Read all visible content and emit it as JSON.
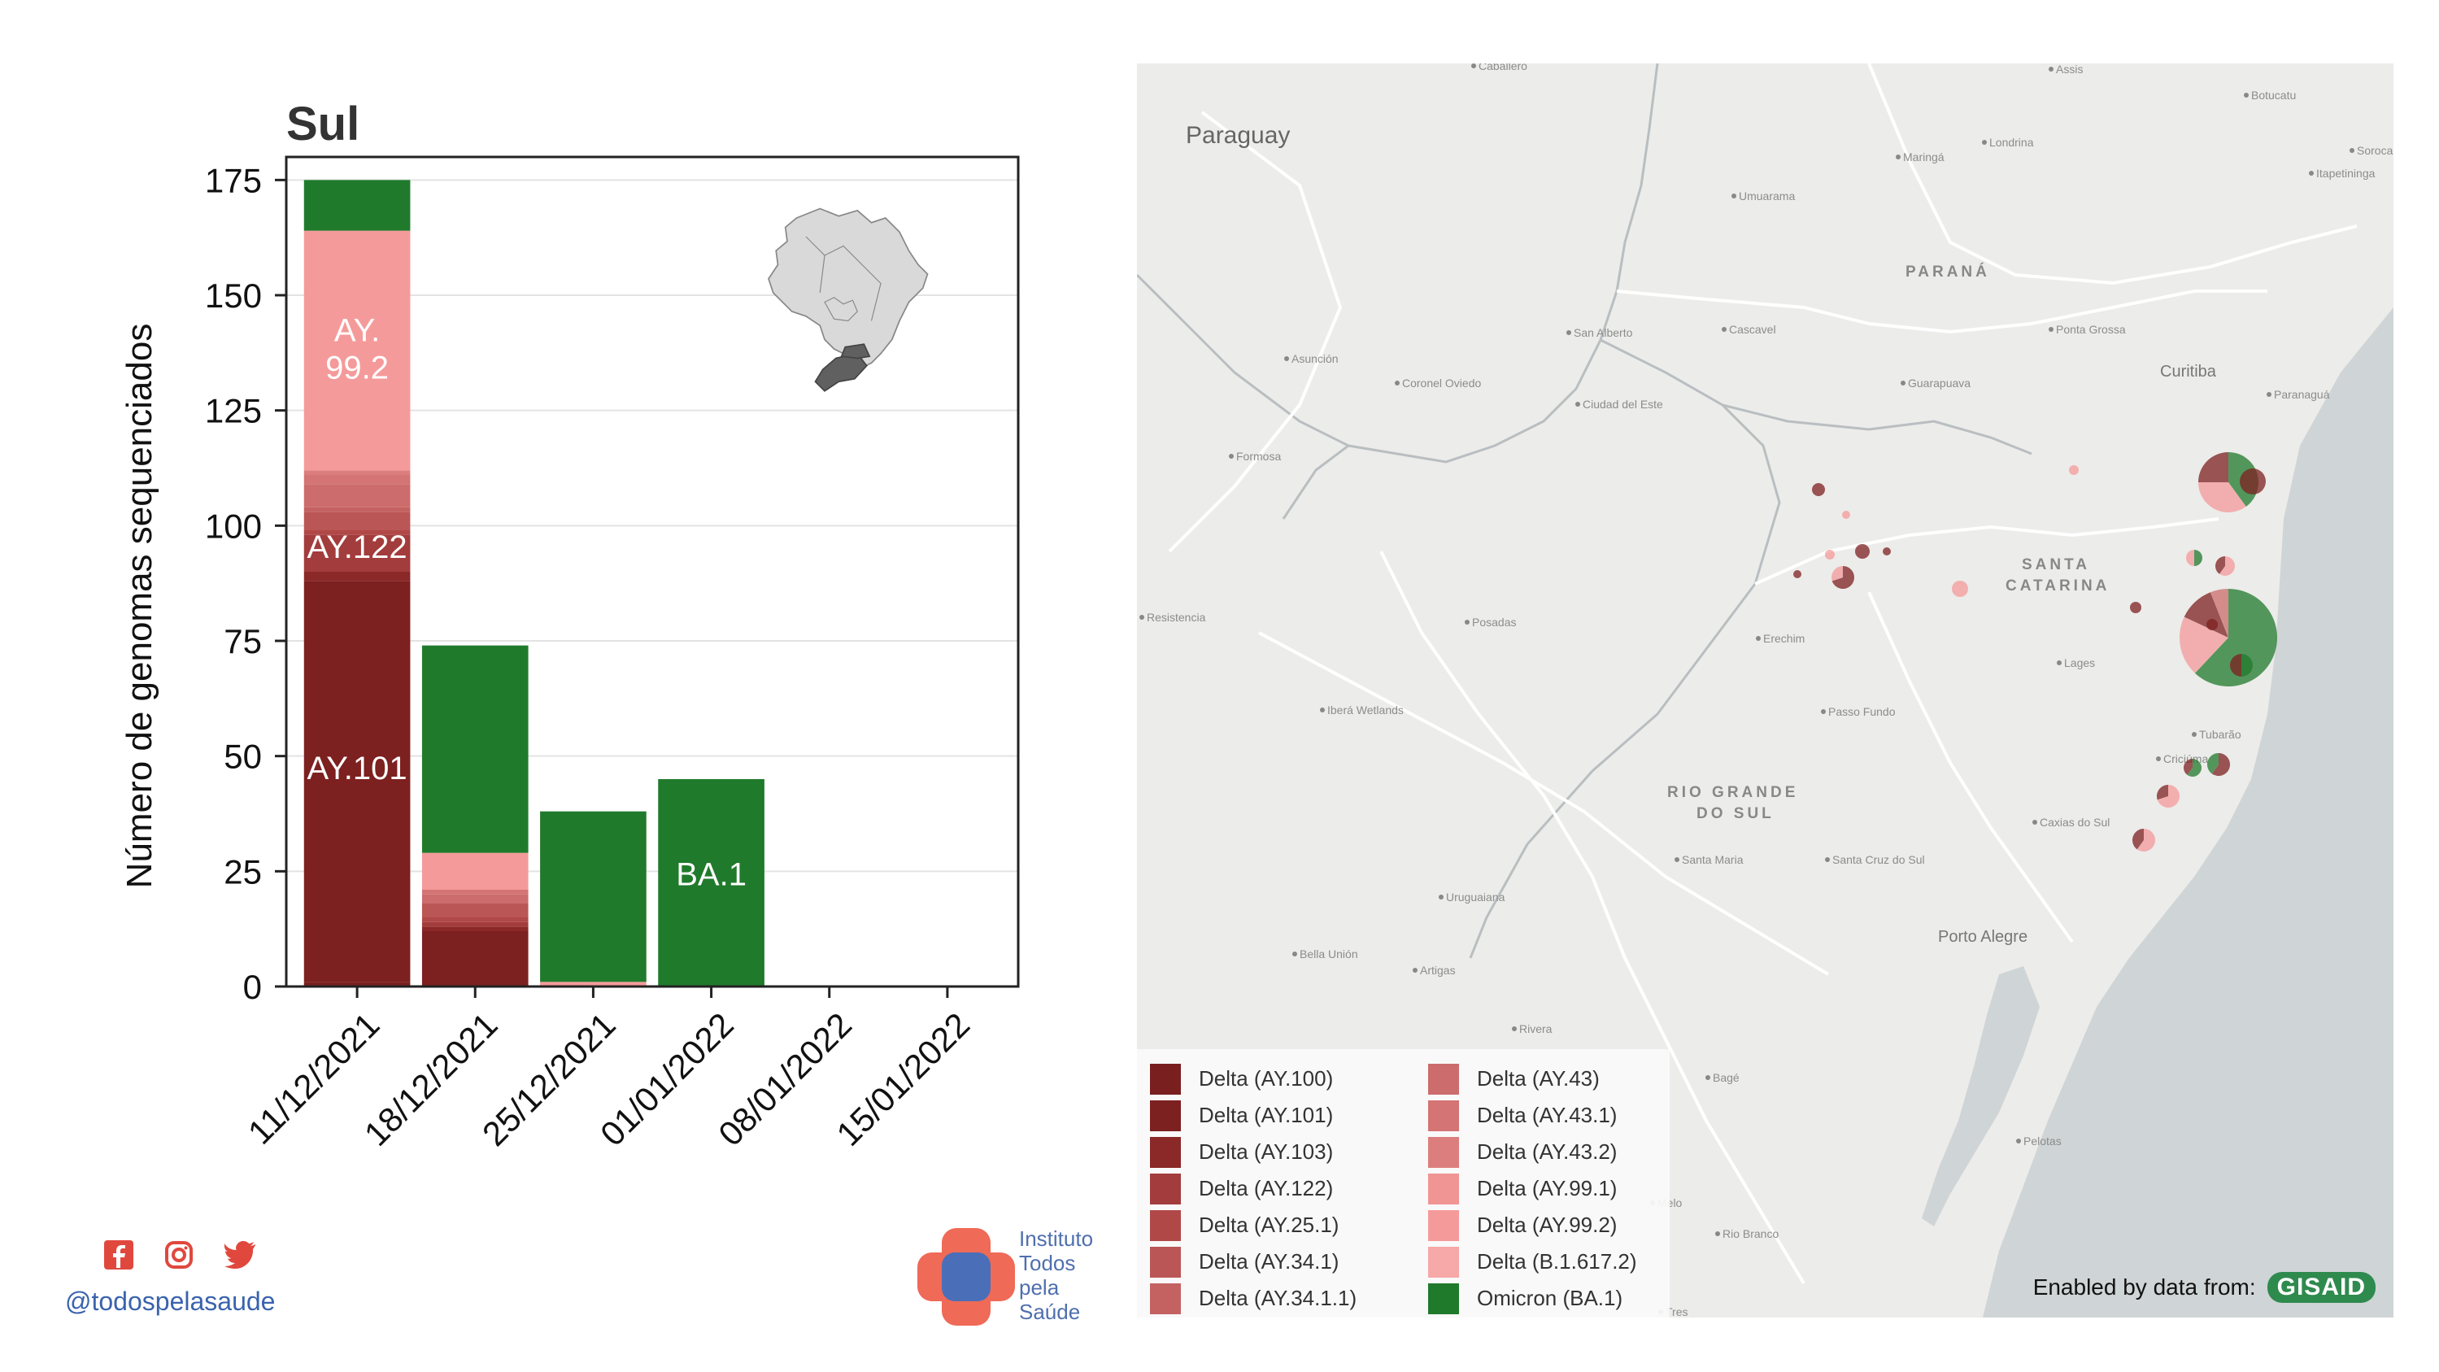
{
  "chart_data": {
    "type": "bar",
    "stacked": true,
    "title": "Sul",
    "xlabel": "",
    "ylabel": "Número de genomas sequenciados",
    "ylim": [
      0,
      180
    ],
    "yticks": [
      0,
      25,
      50,
      75,
      100,
      125,
      150,
      175
    ],
    "categories": [
      "11/12/2021",
      "18/12/2021",
      "25/12/2021",
      "01/01/2022",
      "08/01/2022",
      "15/01/2022"
    ],
    "grid": true,
    "series": [
      {
        "name": "Delta (AY.100)",
        "color": "#7a1f1f",
        "values": [
          1,
          0,
          0,
          0,
          0,
          0
        ]
      },
      {
        "name": "Delta (AY.101)",
        "color": "#7d2020",
        "values": [
          87,
          12,
          0,
          0,
          0,
          0
        ]
      },
      {
        "name": "Delta (AY.103)",
        "color": "#8b2828",
        "values": [
          2,
          1,
          0,
          0,
          0,
          0
        ]
      },
      {
        "name": "Delta (AY.122)",
        "color": "#a33c3c",
        "values": [
          8,
          1,
          0,
          0,
          0,
          0
        ]
      },
      {
        "name": "Delta (AY.25.1)",
        "color": "#b04848",
        "values": [
          1,
          1,
          0,
          0,
          0,
          0
        ]
      },
      {
        "name": "Delta (AY.34.1)",
        "color": "#bb5656",
        "values": [
          4,
          3,
          0,
          0,
          0,
          0
        ]
      },
      {
        "name": "Delta (AY.34.1.1)",
        "color": "#c46262",
        "values": [
          1,
          0,
          0,
          0,
          0,
          0
        ]
      },
      {
        "name": "Delta (AY.43)",
        "color": "#cd6c6c",
        "values": [
          5,
          2,
          0,
          0,
          0,
          0
        ]
      },
      {
        "name": "Delta (AY.43.1)",
        "color": "#d47474",
        "values": [
          2,
          1,
          0,
          0,
          0,
          0
        ]
      },
      {
        "name": "Delta (AY.43.2)",
        "color": "#dc7e7e",
        "values": [
          1,
          0,
          0,
          0,
          0,
          0
        ]
      },
      {
        "name": "Delta (AY.99.1)",
        "color": "#f19494",
        "values": [
          0,
          0,
          0,
          0,
          0,
          0
        ]
      },
      {
        "name": "Delta (AY.99.2)",
        "color": "#f59a9a",
        "values": [
          52,
          8,
          1,
          0,
          0,
          0
        ]
      },
      {
        "name": "Delta (B.1.617.2)",
        "color": "#f7a8a8",
        "values": [
          0,
          0,
          0,
          0,
          0,
          0
        ]
      },
      {
        "name": "Omicron (BA.1)",
        "color": "#207a2c",
        "values": [
          11,
          45,
          37,
          45,
          0,
          0
        ]
      }
    ],
    "bar_labels": [
      {
        "category": 0,
        "y": 45,
        "text": "AY.101"
      },
      {
        "category": 0,
        "y": 93,
        "text": "AY.122"
      },
      {
        "category": 0,
        "y": 140,
        "text": "AY.\n99.2"
      },
      {
        "category": 3,
        "y": 22,
        "text": "BA.1"
      }
    ]
  },
  "social": {
    "handle": "@todospelasaude",
    "icons": [
      "facebook-icon",
      "instagram-icon",
      "twitter-icon"
    ]
  },
  "logo": {
    "lines": [
      "Instituto",
      "Todos",
      "pela",
      "Saúde"
    ]
  },
  "map": {
    "labels": {
      "country": "Paraguay",
      "state_parana": "PARANÁ",
      "state_sc_1": "SANTA",
      "state_sc_2": "CATARINA",
      "state_rs_1": "RIO GRANDE",
      "state_rs_2": "DO SUL",
      "porto_alegre": "Porto Alegre",
      "curitiba": "Curitiba",
      "cities": [
        "Caballero",
        "Assis",
        "Botucatu",
        "Londrina",
        "Sorocaba",
        "Maringá",
        "Itapetininga",
        "Umuarama",
        "Cascavel",
        "San Alberto",
        "Ponta Grossa",
        "Asunción",
        "Coronel Oviedo",
        "Ciudad del Este",
        "Guarapuava",
        "Paranaguá",
        "Formosa",
        "Resistencia",
        "Posadas",
        "Erechim",
        "Lages",
        "Iberá Wetlands",
        "Passo Fundo",
        "Caxias do Sul",
        "Santa Maria",
        "Santa Cruz do Sul",
        "Uruguaiana",
        "Bella Unión",
        "Artigas",
        "Rivera",
        "Bagé",
        "Pelotas",
        "Melo",
        "Rio Branco",
        "Tres",
        "Tubarão",
        "Criciúma"
      ]
    },
    "legend": [
      {
        "label": "Delta (AY.100)",
        "color": "#7a1f1f"
      },
      {
        "label": "Delta (AY.101)",
        "color": "#7d2020"
      },
      {
        "label": "Delta (AY.103)",
        "color": "#8b2828"
      },
      {
        "label": "Delta (AY.122)",
        "color": "#a33c3c"
      },
      {
        "label": "Delta (AY.25.1)",
        "color": "#b04848"
      },
      {
        "label": "Delta (AY.34.1)",
        "color": "#bb5656"
      },
      {
        "label": "Delta (AY.34.1.1)",
        "color": "#c46262"
      },
      {
        "label": "Delta (AY.43)",
        "color": "#cd6c6c"
      },
      {
        "label": "Delta (AY.43.1)",
        "color": "#d47474"
      },
      {
        "label": "Delta (AY.43.2)",
        "color": "#dc7e7e"
      },
      {
        "label": "Delta (AY.99.1)",
        "color": "#f19494"
      },
      {
        "label": "Delta (AY.99.2)",
        "color": "#f59a9a"
      },
      {
        "label": "Delta (B.1.617.2)",
        "color": "#f7a8a8"
      },
      {
        "label": "Omicron (BA.1)",
        "color": "#207a2c"
      }
    ],
    "attribution": "Enabled by data from:",
    "attribution_logo": "GISAID"
  }
}
